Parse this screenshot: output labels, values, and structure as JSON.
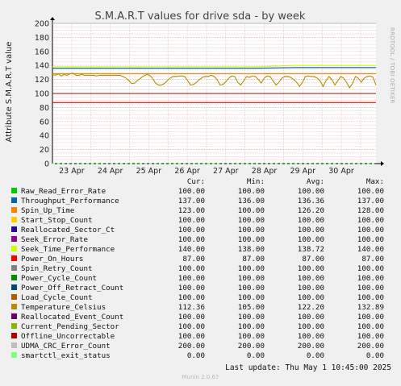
{
  "chart_data": {
    "type": "line",
    "title": "S.M.A.R.T values for drive sda - by week",
    "ylabel": "Attribute S.M.A.R.T value",
    "side_label": "RRDTOOL / TOBI OETIKER",
    "ylim": [
      0,
      200
    ],
    "yticks": [
      "0",
      "20",
      "40",
      "60",
      "80",
      "100",
      "120",
      "140",
      "160",
      "180",
      "200"
    ],
    "x_tick_labels": [
      "23 Apr",
      "24 Apr",
      "25 Apr",
      "26 Apr",
      "27 Apr",
      "28 Apr",
      "29 Apr",
      "30 Apr"
    ],
    "x_range_days": [
      0,
      8.4
    ],
    "grid": true,
    "legend_position": "bottom",
    "series": [
      {
        "name": "Raw_Read_Error_Rate",
        "color": "#00cc00",
        "cur": "100.00",
        "min": "100.00",
        "avg": "100.00",
        "max": "100.00",
        "values": [
          100
        ]
      },
      {
        "name": "Throughput_Performance",
        "color": "#0066b3",
        "cur": "137.00",
        "min": "136.00",
        "avg": "136.36",
        "max": "137.00",
        "values": [
          136,
          136,
          136,
          136,
          136,
          136,
          137,
          137,
          137
        ]
      },
      {
        "name": "Spin_Up_Time",
        "color": "#ff8000",
        "cur": "123.00",
        "min": "100.00",
        "avg": "126.20",
        "max": "128.00",
        "values": [
          128
        ]
      },
      {
        "name": "Start_Stop_Count",
        "color": "#ffcc00",
        "cur": "100.00",
        "min": "100.00",
        "avg": "100.00",
        "max": "100.00",
        "values": [
          100
        ]
      },
      {
        "name": "Reallocated_Sector_Ct",
        "color": "#330099",
        "cur": "100.00",
        "min": "100.00",
        "avg": "100.00",
        "max": "100.00",
        "values": [
          100
        ]
      },
      {
        "name": "Seek_Error_Rate",
        "color": "#990099",
        "cur": "100.00",
        "min": "100.00",
        "avg": "100.00",
        "max": "100.00",
        "values": [
          100
        ]
      },
      {
        "name": "Seek_Time_Performance",
        "color": "#ccff00",
        "cur": "140.00",
        "min": "138.00",
        "avg": "138.72",
        "max": "140.00",
        "values": [
          138,
          138,
          138,
          138,
          138,
          138,
          140,
          140,
          140
        ]
      },
      {
        "name": "Power_On_Hours",
        "color": "#ff0000",
        "cur": "87.00",
        "min": "87.00",
        "avg": "87.00",
        "max": "87.00",
        "values": [
          87
        ]
      },
      {
        "name": "Spin_Retry_Count",
        "color": "#808080",
        "cur": "100.00",
        "min": "100.00",
        "avg": "100.00",
        "max": "100.00",
        "values": [
          100
        ]
      },
      {
        "name": "Power_Cycle_Count",
        "color": "#008f00",
        "cur": "100.00",
        "min": "100.00",
        "avg": "100.00",
        "max": "100.00",
        "values": [
          100
        ]
      },
      {
        "name": "Power_Off_Retract_Count",
        "color": "#00487d",
        "cur": "100.00",
        "min": "100.00",
        "avg": "100.00",
        "max": "100.00",
        "values": [
          100
        ]
      },
      {
        "name": "Load_Cycle_Count",
        "color": "#b35a00",
        "cur": "100.00",
        "min": "100.00",
        "avg": "100.00",
        "max": "100.00",
        "values": [
          100
        ]
      },
      {
        "name": "Temperature_Celsius",
        "color": "#b38f00",
        "cur": "112.36",
        "min": "105.00",
        "avg": "122.20",
        "max": "132.89",
        "values": [
          127,
          126,
          128,
          125,
          127,
          126,
          128,
          129,
          126,
          126,
          127,
          126,
          126,
          126,
          126,
          125,
          126,
          126,
          126,
          126,
          126,
          126,
          126,
          126,
          124,
          122,
          118,
          114,
          115,
          119,
          122,
          125,
          127,
          126,
          122,
          115,
          112,
          112,
          114,
          118,
          122,
          124,
          124,
          125,
          125,
          124,
          118,
          112,
          113,
          116,
          120,
          123,
          124,
          124,
          126,
          124,
          120,
          112,
          113,
          117,
          122,
          125,
          124,
          116,
          112,
          118,
          124,
          123,
          125,
          124,
          120,
          115,
          122,
          125,
          124,
          118,
          112,
          116,
          122,
          124,
          124,
          123,
          120,
          116,
          110,
          116,
          124,
          125,
          124,
          124,
          122,
          118,
          110,
          118,
          124,
          120,
          112,
          118,
          124,
          122,
          116,
          108,
          114,
          124,
          122,
          116,
          122,
          124,
          125,
          123,
          112
        ]
      },
      {
        "name": "Reallocated_Event_Count",
        "color": "#6b006b",
        "cur": "100.00",
        "min": "100.00",
        "avg": "100.00",
        "max": "100.00",
        "values": [
          100
        ]
      },
      {
        "name": "Current_Pending_Sector",
        "color": "#8fb300",
        "cur": "100.00",
        "min": "100.00",
        "avg": "100.00",
        "max": "100.00",
        "values": [
          100
        ]
      },
      {
        "name": "Offline_Uncorrectable",
        "color": "#b30000",
        "cur": "100.00",
        "min": "100.00",
        "avg": "100.00",
        "max": "100.00",
        "values": [
          100
        ]
      },
      {
        "name": "UDMA_CRC_Error_Count",
        "color": "#bebebe",
        "cur": "200.00",
        "min": "200.00",
        "avg": "200.00",
        "max": "200.00",
        "values": [
          200
        ]
      },
      {
        "name": "smartctl_exit_status",
        "color": "#80ff80",
        "cur": "0.00",
        "min": "0.00",
        "avg": "0.00",
        "max": "0.00",
        "values": [
          0
        ]
      }
    ]
  },
  "legend_headers": {
    "cur": "Cur:",
    "min": "Min:",
    "avg": "Avg:",
    "max": "Max:"
  },
  "footer": {
    "last_update": "Last update: Thu May  1 10:45:00 2025",
    "generator": "Munin 2.0.67"
  }
}
